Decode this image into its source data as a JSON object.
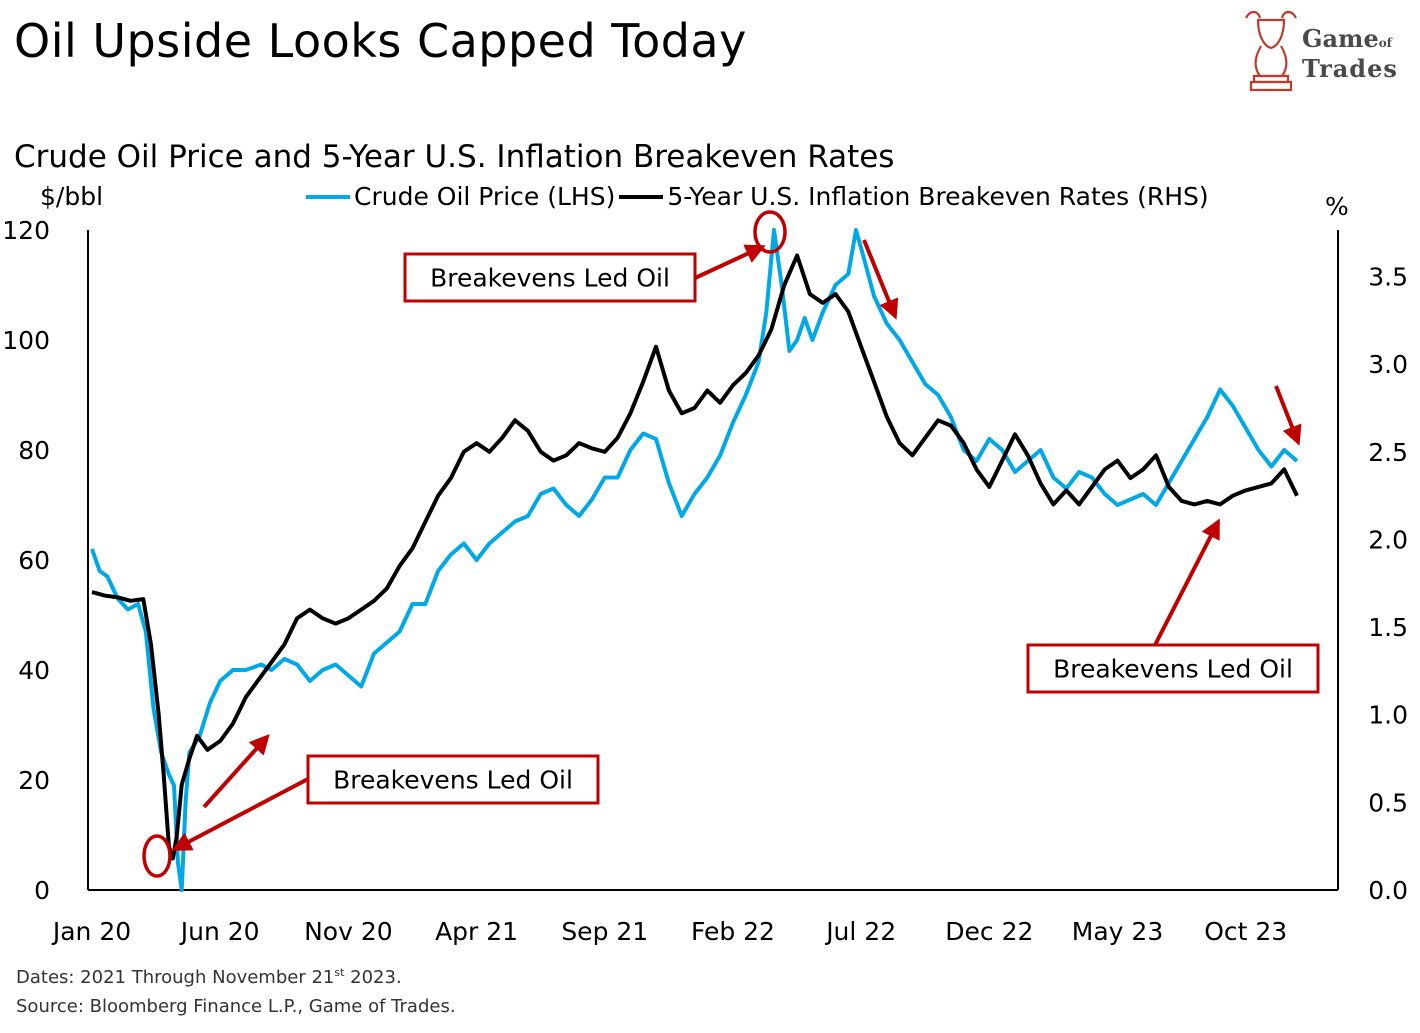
{
  "header": {
    "title": "Oil Upside Looks Capped Today",
    "logo_line1": "Game",
    "logo_of": "of",
    "logo_line2": "Trades"
  },
  "chart_data": {
    "type": "line",
    "title": "Crude Oil Price and 5-Year U.S. Inflation Breakeven Rates",
    "ylabel_left": "$/bbl",
    "ylabel_right": "%",
    "ylim_left": [
      0,
      120
    ],
    "ylim_right": [
      0.0,
      3.8
    ],
    "yticks_left": [
      "0",
      "20",
      "40",
      "60",
      "80",
      "100",
      "120"
    ],
    "yticks_right": [
      "0.0",
      "0.5",
      "1.0",
      "1.5",
      "2.0",
      "2.5",
      "3.0",
      "3.5"
    ],
    "xticks": [
      "Jan 20",
      "Jun 20",
      "Nov 20",
      "Apr 21",
      "Sep 21",
      "Feb 22",
      "Jul 22",
      "Dec 22",
      "May 23",
      "Oct 23"
    ],
    "x_unit": "months since Jan 2020",
    "x_range": [
      0,
      47
    ],
    "series": [
      {
        "name": "Crude Oil Price (LHS)",
        "axis": "left",
        "color": "#00a8e8",
        "points": [
          [
            0,
            62
          ],
          [
            0.3,
            58
          ],
          [
            0.6,
            57
          ],
          [
            1,
            53
          ],
          [
            1.4,
            51
          ],
          [
            1.8,
            52
          ],
          [
            2.1,
            47
          ],
          [
            2.4,
            33
          ],
          [
            2.7,
            25
          ],
          [
            3,
            21
          ],
          [
            3.2,
            19
          ],
          [
            3.35,
            5
          ],
          [
            3.5,
            0
          ],
          [
            3.65,
            16
          ],
          [
            3.8,
            25
          ],
          [
            4.2,
            28
          ],
          [
            4.6,
            34
          ],
          [
            5,
            38
          ],
          [
            5.5,
            40
          ],
          [
            6,
            40
          ],
          [
            6.6,
            41
          ],
          [
            7,
            40
          ],
          [
            7.5,
            42
          ],
          [
            8,
            41
          ],
          [
            8.5,
            38
          ],
          [
            9,
            40
          ],
          [
            9.5,
            41
          ],
          [
            10,
            39
          ],
          [
            10.5,
            37
          ],
          [
            11,
            43
          ],
          [
            11.5,
            45
          ],
          [
            12,
            47
          ],
          [
            12.5,
            52
          ],
          [
            13,
            52
          ],
          [
            13.5,
            58
          ],
          [
            14,
            61
          ],
          [
            14.5,
            63
          ],
          [
            15,
            60
          ],
          [
            15.5,
            63
          ],
          [
            16,
            65
          ],
          [
            16.5,
            67
          ],
          [
            17,
            68
          ],
          [
            17.5,
            72
          ],
          [
            18,
            73
          ],
          [
            18.5,
            70
          ],
          [
            19,
            68
          ],
          [
            19.5,
            71
          ],
          [
            20,
            75
          ],
          [
            20.5,
            75
          ],
          [
            21,
            80
          ],
          [
            21.5,
            83
          ],
          [
            22,
            82
          ],
          [
            22.5,
            74
          ],
          [
            23,
            68
          ],
          [
            23.5,
            72
          ],
          [
            24,
            75
          ],
          [
            24.5,
            79
          ],
          [
            25,
            85
          ],
          [
            25.5,
            90
          ],
          [
            26,
            96
          ],
          [
            26.3,
            105
          ],
          [
            26.6,
            120
          ],
          [
            26.9,
            110
          ],
          [
            27.2,
            98
          ],
          [
            27.5,
            100
          ],
          [
            27.8,
            104
          ],
          [
            28.1,
            100
          ],
          [
            28.5,
            105
          ],
          [
            29,
            110
          ],
          [
            29.5,
            112
          ],
          [
            29.8,
            120
          ],
          [
            30.1,
            115
          ],
          [
            30.5,
            108
          ],
          [
            31,
            103
          ],
          [
            31.5,
            100
          ],
          [
            32,
            96
          ],
          [
            32.5,
            92
          ],
          [
            33,
            90
          ],
          [
            33.5,
            86
          ],
          [
            34,
            80
          ],
          [
            34.5,
            78
          ],
          [
            35,
            82
          ],
          [
            35.5,
            80
          ],
          [
            36,
            76
          ],
          [
            36.5,
            78
          ],
          [
            37,
            80
          ],
          [
            37.5,
            75
          ],
          [
            38,
            73
          ],
          [
            38.5,
            76
          ],
          [
            39,
            75
          ],
          [
            39.5,
            72
          ],
          [
            40,
            70
          ],
          [
            40.5,
            71
          ],
          [
            41,
            72
          ],
          [
            41.5,
            70
          ],
          [
            42,
            74
          ],
          [
            42.5,
            78
          ],
          [
            43,
            82
          ],
          [
            43.5,
            86
          ],
          [
            44,
            91
          ],
          [
            44.5,
            88
          ],
          [
            45,
            84
          ],
          [
            45.5,
            80
          ],
          [
            46,
            77
          ],
          [
            46.5,
            80
          ],
          [
            47,
            78
          ]
        ]
      },
      {
        "name": "5-Year U.S. Inflation Breakeven Rates (RHS)",
        "axis": "right",
        "color": "#000000",
        "points": [
          [
            0,
            1.7
          ],
          [
            0.5,
            1.68
          ],
          [
            1,
            1.67
          ],
          [
            1.5,
            1.65
          ],
          [
            2,
            1.66
          ],
          [
            2.3,
            1.4
          ],
          [
            2.6,
            1.0
          ],
          [
            2.8,
            0.65
          ],
          [
            3,
            0.25
          ],
          [
            3.15,
            0.18
          ],
          [
            3.3,
            0.3
          ],
          [
            3.5,
            0.6
          ],
          [
            3.8,
            0.75
          ],
          [
            4.1,
            0.88
          ],
          [
            4.5,
            0.8
          ],
          [
            5,
            0.85
          ],
          [
            5.5,
            0.95
          ],
          [
            6,
            1.1
          ],
          [
            6.5,
            1.2
          ],
          [
            7,
            1.3
          ],
          [
            7.5,
            1.4
          ],
          [
            8,
            1.55
          ],
          [
            8.5,
            1.6
          ],
          [
            9,
            1.55
          ],
          [
            9.5,
            1.52
          ],
          [
            10,
            1.55
          ],
          [
            10.5,
            1.6
          ],
          [
            11,
            1.65
          ],
          [
            11.5,
            1.72
          ],
          [
            12,
            1.85
          ],
          [
            12.5,
            1.95
          ],
          [
            13,
            2.1
          ],
          [
            13.5,
            2.25
          ],
          [
            14,
            2.35
          ],
          [
            14.5,
            2.5
          ],
          [
            15,
            2.55
          ],
          [
            15.5,
            2.5
          ],
          [
            16,
            2.58
          ],
          [
            16.5,
            2.68
          ],
          [
            17,
            2.62
          ],
          [
            17.5,
            2.5
          ],
          [
            18,
            2.45
          ],
          [
            18.5,
            2.48
          ],
          [
            19,
            2.55
          ],
          [
            19.5,
            2.52
          ],
          [
            20,
            2.5
          ],
          [
            20.5,
            2.58
          ],
          [
            21,
            2.72
          ],
          [
            21.5,
            2.9
          ],
          [
            22,
            3.1
          ],
          [
            22.5,
            2.85
          ],
          [
            23,
            2.72
          ],
          [
            23.5,
            2.75
          ],
          [
            24,
            2.85
          ],
          [
            24.5,
            2.78
          ],
          [
            25,
            2.88
          ],
          [
            25.5,
            2.95
          ],
          [
            26,
            3.05
          ],
          [
            26.5,
            3.2
          ],
          [
            27,
            3.45
          ],
          [
            27.5,
            3.62
          ],
          [
            28,
            3.4
          ],
          [
            28.5,
            3.35
          ],
          [
            29,
            3.4
          ],
          [
            29.5,
            3.3
          ],
          [
            30,
            3.1
          ],
          [
            30.5,
            2.9
          ],
          [
            31,
            2.7
          ],
          [
            31.5,
            2.55
          ],
          [
            32,
            2.48
          ],
          [
            32.5,
            2.58
          ],
          [
            33,
            2.68
          ],
          [
            33.5,
            2.65
          ],
          [
            34,
            2.55
          ],
          [
            34.5,
            2.4
          ],
          [
            35,
            2.3
          ],
          [
            35.5,
            2.45
          ],
          [
            36,
            2.6
          ],
          [
            36.5,
            2.48
          ],
          [
            37,
            2.32
          ],
          [
            37.5,
            2.2
          ],
          [
            38,
            2.28
          ],
          [
            38.5,
            2.2
          ],
          [
            39,
            2.3
          ],
          [
            39.5,
            2.4
          ],
          [
            40,
            2.45
          ],
          [
            40.5,
            2.35
          ],
          [
            41,
            2.4
          ],
          [
            41.5,
            2.48
          ],
          [
            42,
            2.3
          ],
          [
            42.5,
            2.22
          ],
          [
            43,
            2.2
          ],
          [
            43.5,
            2.22
          ],
          [
            44,
            2.2
          ],
          [
            44.5,
            2.25
          ],
          [
            45,
            2.28
          ],
          [
            45.5,
            2.3
          ],
          [
            46,
            2.32
          ],
          [
            46.5,
            2.4
          ],
          [
            47,
            2.25
          ]
        ]
      }
    ],
    "annotations": [
      {
        "text": "Breakevens Led Oil"
      },
      {
        "text": "Breakevens Led Oil"
      },
      {
        "text": "Breakevens Led Oil"
      }
    ],
    "annotation_color": "#c00000",
    "footer_dates_prefix": "Dates: 2021 Through November 21",
    "footer_dates_sup": "st",
    "footer_dates_suffix": " 2023.",
    "footer_source": "Source: Bloomberg Finance L.P., Game of Trades."
  }
}
